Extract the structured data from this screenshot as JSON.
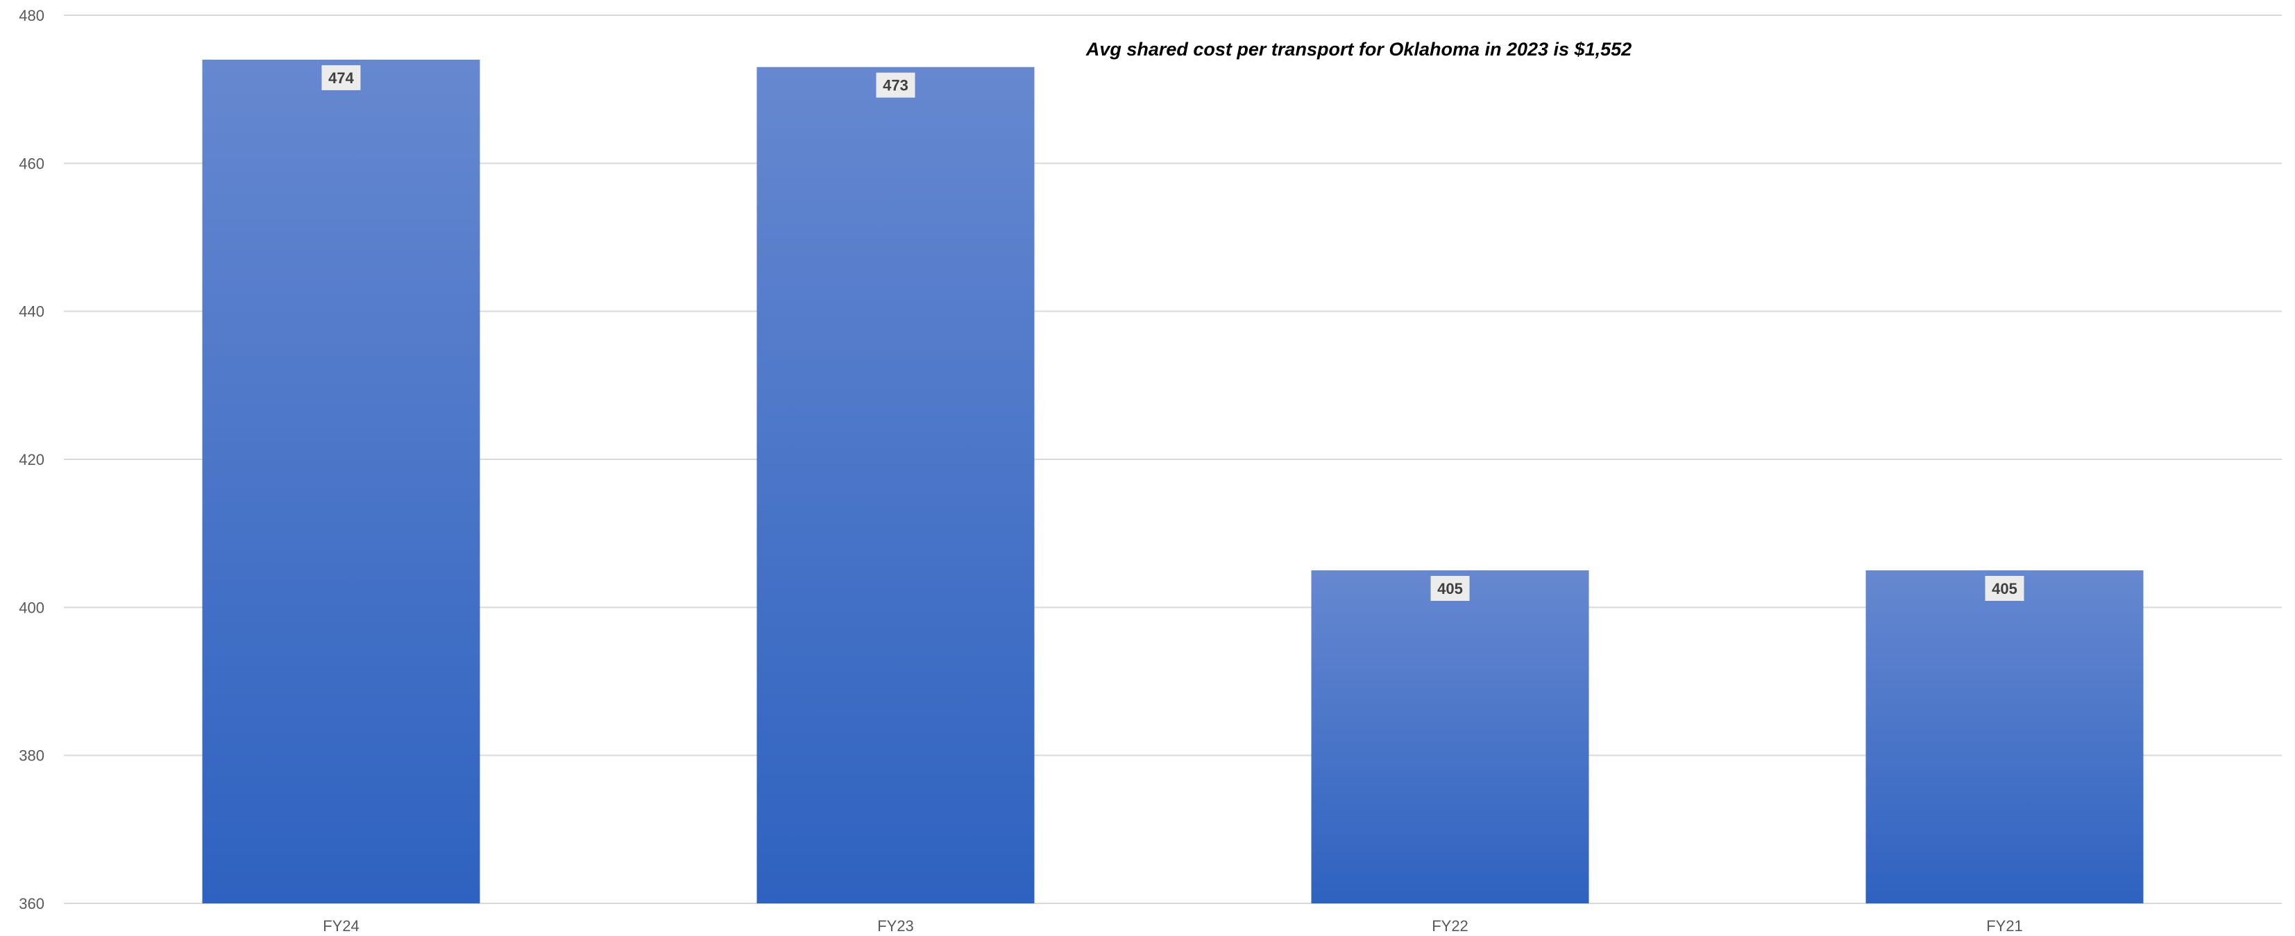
{
  "chart_data": {
    "type": "bar",
    "title": "",
    "xlabel": "",
    "ylabel": "",
    "categories": [
      "FY24",
      "FY23",
      "FY22",
      "FY21"
    ],
    "series": [
      {
        "values": [
          474,
          473,
          405,
          405
        ],
        "color_top": "#6688d0",
        "color_bottom": "#2e62c0"
      }
    ],
    "data_labels": [
      "474",
      "473",
      "405",
      "405"
    ],
    "ylim": [
      360,
      480
    ],
    "yticks": [
      360,
      380,
      400,
      420,
      440,
      460,
      480
    ],
    "ytick_labels": [
      "360",
      "380",
      "400",
      "420",
      "440",
      "460",
      "480"
    ],
    "grid": true,
    "legend": "none",
    "annotation": "Avg shared cost per transport for Oklahoma in 2023 is $1,552",
    "colors": {
      "grid": "#d9d9d9",
      "axis_text": "#595959",
      "label_box": "#ececec"
    }
  }
}
